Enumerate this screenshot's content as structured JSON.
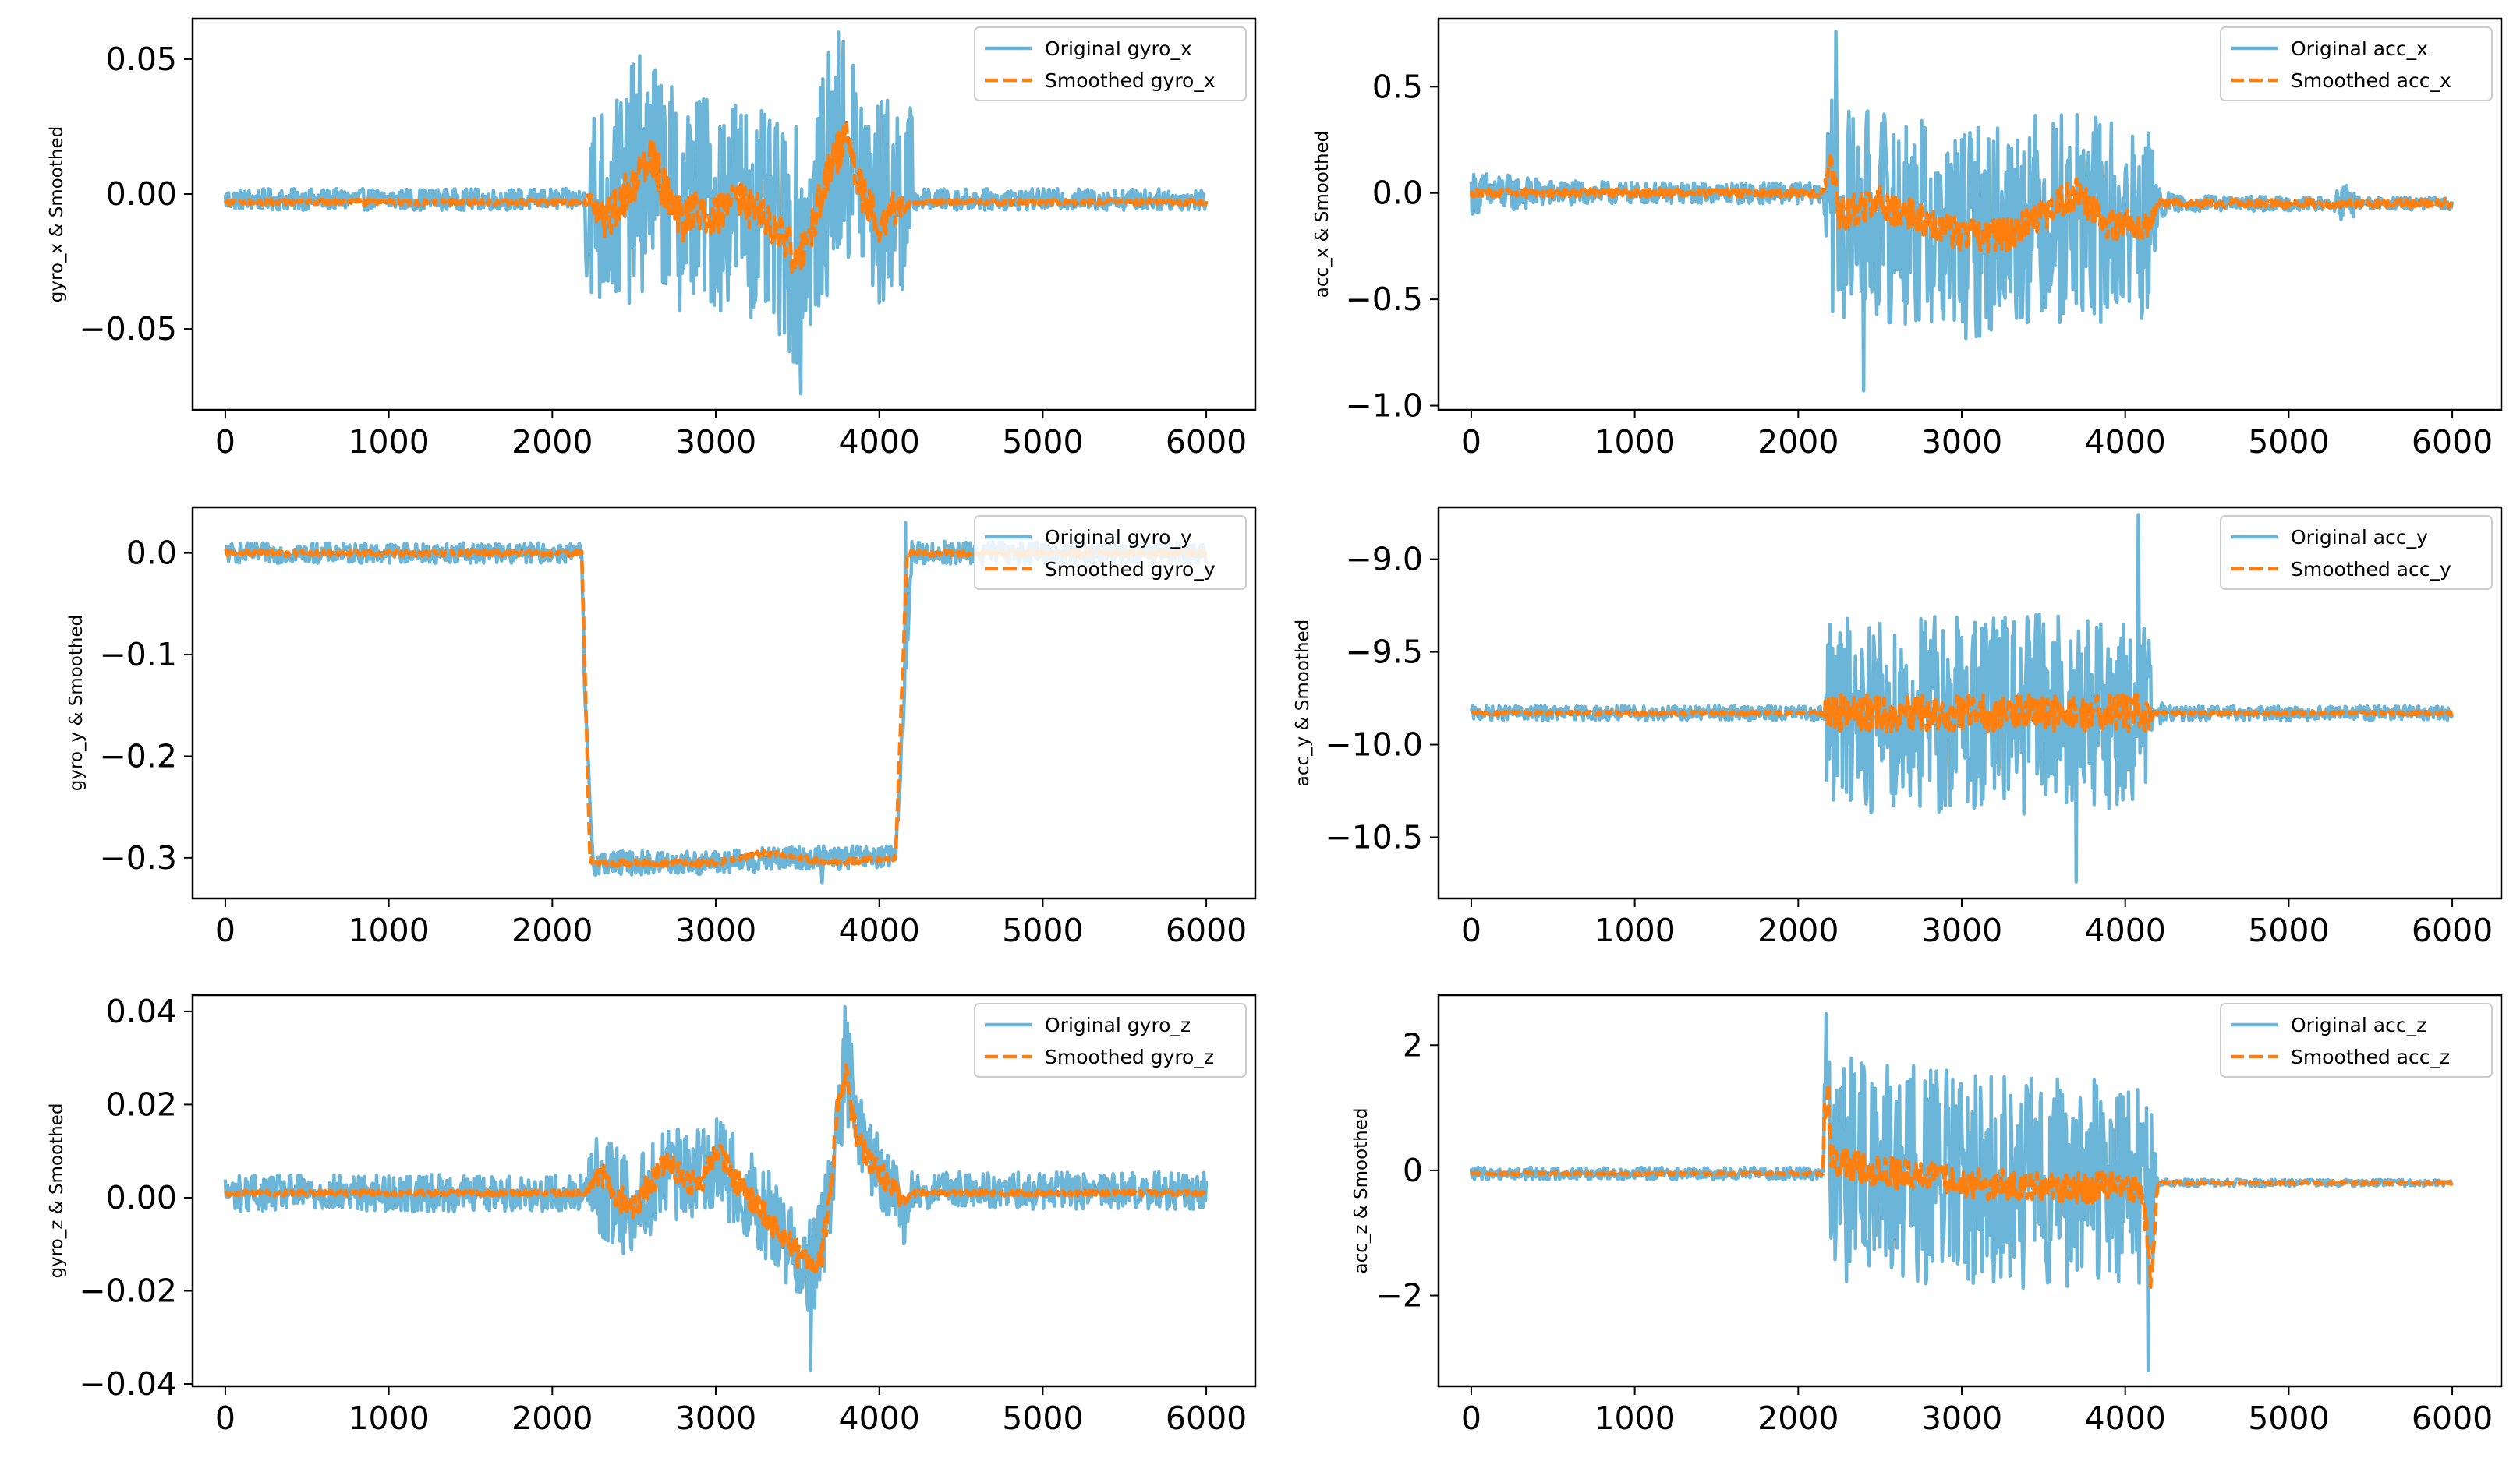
{
  "figure": {
    "background": "#ffffff"
  },
  "colors": {
    "original": "#6bb5d9",
    "smoothed": "#ff7f0e",
    "axes": "#000000",
    "legend_border": "#cccccc"
  },
  "chart_data": [
    {
      "id": "gyro_x",
      "type": "line",
      "title": "",
      "xlabel": "",
      "ylabel": "gyro_x & Smoothed",
      "xlim": [
        -200,
        6300
      ],
      "ylim": [
        -0.08,
        0.065
      ],
      "xticks": [
        0,
        1000,
        2000,
        3000,
        4000,
        5000,
        6000
      ],
      "xtick_labels": [
        "0",
        "1000",
        "2000",
        "3000",
        "4000",
        "5000",
        "6000"
      ],
      "yticks": [
        -0.05,
        0,
        0.05
      ],
      "ytick_labels": [
        "−0.05",
        "0.00",
        "0.05"
      ],
      "legend": [
        "Original gyro_x",
        "Smoothed gyro_x"
      ],
      "legend_loc": "upper right",
      "series": [
        {
          "name": "Original gyro_x",
          "style": "solid",
          "x": [
            0,
            2200,
            2200,
            2300,
            2400,
            2500,
            2600,
            2700,
            2800,
            2900,
            3000,
            3100,
            3200,
            3300,
            3400,
            3500,
            3600,
            3700,
            3800,
            3900,
            4000,
            4100,
            4200,
            4200,
            6000
          ],
          "base": [
            -0.002,
            -0.002,
            0.0,
            -0.005,
            -0.003,
            0.005,
            0.01,
            0.003,
            -0.005,
            0.0,
            -0.005,
            0.0,
            -0.005,
            -0.01,
            -0.015,
            -0.02,
            -0.01,
            0.01,
            0.015,
            0.005,
            -0.005,
            0.0,
            -0.002,
            -0.002,
            -0.002
          ],
          "amp": [
            0.004,
            0.004,
            0.035,
            0.04,
            0.04,
            0.045,
            0.045,
            0.04,
            0.04,
            0.04,
            0.04,
            0.04,
            0.04,
            0.04,
            0.04,
            0.045,
            0.04,
            0.045,
            0.045,
            0.04,
            0.04,
            0.04,
            0.035,
            0.004,
            0.004
          ],
          "spike_max": 0.06,
          "spike_min": -0.074,
          "spike_max_at": 3750,
          "spike_min_at": 3520
        },
        {
          "name": "Smoothed gyro_x",
          "style": "dashed",
          "x": [
            0,
            2200,
            2250,
            2300,
            2400,
            2500,
            2600,
            2700,
            2800,
            2900,
            3000,
            3100,
            3200,
            3300,
            3400,
            3500,
            3600,
            3700,
            3800,
            3900,
            4000,
            4100,
            4200,
            6000
          ],
          "y": [
            -0.003,
            -0.003,
            0.0,
            -0.01,
            -0.005,
            0.005,
            0.015,
            0.0,
            -0.01,
            -0.005,
            -0.008,
            0.0,
            -0.005,
            -0.01,
            -0.015,
            -0.025,
            -0.01,
            0.01,
            0.02,
            0.0,
            -0.01,
            -0.005,
            -0.003,
            -0.003
          ],
          "noise": [
            0.001,
            0.001,
            0.006,
            0.008,
            0.008,
            0.008,
            0.008,
            0.008,
            0.008,
            0.008,
            0.008,
            0.008,
            0.008,
            0.008,
            0.008,
            0.008,
            0.008,
            0.008,
            0.008,
            0.008,
            0.008,
            0.006,
            0.001,
            0.001
          ]
        }
      ]
    },
    {
      "id": "acc_x",
      "type": "line",
      "title": "",
      "xlabel": "",
      "ylabel": "acc_x & Smoothed",
      "xlim": [
        -200,
        6300
      ],
      "ylim": [
        -1.02,
        0.82
      ],
      "xticks": [
        0,
        1000,
        2000,
        3000,
        4000,
        5000,
        6000
      ],
      "xtick_labels": [
        "0",
        "1000",
        "2000",
        "3000",
        "4000",
        "5000",
        "6000"
      ],
      "yticks": [
        -1.0,
        -0.5,
        0.0,
        0.5
      ],
      "ytick_labels": [
        "−1.0",
        "−0.5",
        "0.0",
        "0.5"
      ],
      "legend": [
        "Original acc_x",
        "Smoothed acc_x"
      ],
      "legend_loc": "upper right",
      "series": [
        {
          "name": "Original acc_x",
          "style": "solid",
          "x": [
            0,
            100,
            500,
            1000,
            1500,
            2000,
            2150,
            2200,
            2250,
            2500,
            3000,
            3500,
            4000,
            4150,
            4200,
            4300,
            5250,
            5350,
            5450,
            6000
          ],
          "base": [
            0.0,
            0.0,
            0.0,
            0.0,
            0.0,
            0.0,
            0.0,
            -0.05,
            -0.1,
            -0.1,
            -0.2,
            -0.1,
            -0.15,
            -0.15,
            -0.05,
            -0.05,
            -0.05,
            -0.05,
            -0.05,
            -0.05
          ],
          "amp": [
            0.1,
            0.1,
            0.06,
            0.05,
            0.05,
            0.05,
            0.05,
            0.5,
            0.5,
            0.5,
            0.5,
            0.5,
            0.5,
            0.45,
            0.08,
            0.04,
            0.03,
            0.1,
            0.03,
            0.03
          ],
          "spike_max": 0.76,
          "spike_min": -0.93,
          "spike_max_at": 2230,
          "spike_min_at": 2400
        },
        {
          "name": "Smoothed acc_x",
          "style": "dashed",
          "x": [
            0,
            2150,
            2200,
            2250,
            2500,
            3000,
            3300,
            3500,
            3700,
            3900,
            4150,
            4200,
            6000
          ],
          "y": [
            0.0,
            0.0,
            0.15,
            -0.1,
            -0.05,
            -0.2,
            -0.2,
            -0.1,
            0.0,
            -0.15,
            -0.15,
            -0.05,
            -0.05
          ],
          "noise": [
            0.02,
            0.02,
            0.05,
            0.08,
            0.08,
            0.08,
            0.08,
            0.08,
            0.08,
            0.08,
            0.06,
            0.02,
            0.02
          ]
        }
      ]
    },
    {
      "id": "gyro_y",
      "type": "line",
      "title": "",
      "xlabel": "",
      "ylabel": "gyro_y & Smoothed",
      "xlim": [
        -200,
        6300
      ],
      "ylim": [
        -0.34,
        0.045
      ],
      "xticks": [
        0,
        1000,
        2000,
        3000,
        4000,
        5000,
        6000
      ],
      "xtick_labels": [
        "0",
        "1000",
        "2000",
        "3000",
        "4000",
        "5000",
        "6000"
      ],
      "yticks": [
        -0.3,
        -0.2,
        -0.1,
        0.0
      ],
      "ytick_labels": [
        "−0.3",
        "−0.2",
        "−0.1",
        "0.0"
      ],
      "legend": [
        "Original gyro_y",
        "Smoothed gyro_y"
      ],
      "legend_loc": "upper right",
      "series": [
        {
          "name": "Original gyro_y",
          "style": "solid",
          "x": [
            0,
            2180,
            2200,
            2250,
            3000,
            3500,
            4100,
            4150,
            4200,
            6000
          ],
          "base": [
            0.0,
            0.0,
            -0.15,
            -0.305,
            -0.305,
            -0.3,
            -0.3,
            -0.15,
            0.0,
            0.0
          ],
          "amp": [
            0.01,
            0.01,
            0.01,
            0.012,
            0.012,
            0.012,
            0.012,
            0.01,
            0.012,
            0.01
          ],
          "spike_max": 0.03,
          "spike_min": -0.325,
          "spike_max_at": 4160,
          "spike_min_at": 3650
        },
        {
          "name": "Smoothed gyro_y",
          "style": "dashed",
          "x": [
            0,
            2180,
            2230,
            2250,
            2500,
            3000,
            3300,
            3700,
            4100,
            4170,
            4200,
            6000
          ],
          "y": [
            0.0,
            0.0,
            -0.3,
            -0.305,
            -0.305,
            -0.305,
            -0.295,
            -0.305,
            -0.3,
            0.0,
            0.0,
            0.0
          ],
          "noise": [
            0.003,
            0.003,
            0.003,
            0.003,
            0.003,
            0.003,
            0.003,
            0.003,
            0.003,
            0.003,
            0.003,
            0.003
          ]
        }
      ]
    },
    {
      "id": "acc_y",
      "type": "line",
      "title": "",
      "xlabel": "",
      "ylabel": "acc_y & Smoothed",
      "xlim": [
        -200,
        6300
      ],
      "ylim": [
        -10.83,
        -8.72
      ],
      "xticks": [
        0,
        1000,
        2000,
        3000,
        4000,
        5000,
        6000
      ],
      "xtick_labels": [
        "0",
        "1000",
        "2000",
        "3000",
        "4000",
        "5000",
        "6000"
      ],
      "yticks": [
        -10.5,
        -10.0,
        -9.5,
        -9.0
      ],
      "ytick_labels": [
        "−10.5",
        "−10.0",
        "−9.5",
        "−9.0"
      ],
      "legend": [
        "Original acc_y",
        "Smoothed acc_y"
      ],
      "legend_loc": "upper right",
      "series": [
        {
          "name": "Original acc_y",
          "style": "solid",
          "x": [
            0,
            2150,
            2170,
            2500,
            3000,
            3500,
            4150,
            4170,
            4300,
            6000
          ],
          "base": [
            -9.83,
            -9.83,
            -9.83,
            -9.83,
            -9.83,
            -9.83,
            -9.83,
            -9.83,
            -9.83,
            -9.83
          ],
          "amp": [
            0.04,
            0.04,
            0.5,
            0.55,
            0.55,
            0.55,
            0.5,
            0.08,
            0.04,
            0.04
          ],
          "spike_max": -8.76,
          "spike_min": -10.74,
          "spike_max_at": 4080,
          "spike_min_at": 3700
        },
        {
          "name": "Smoothed acc_y",
          "style": "dashed",
          "x": [
            0,
            2150,
            2170,
            4150,
            4170,
            6000
          ],
          "y": [
            -9.83,
            -9.83,
            -9.83,
            -9.83,
            -9.83,
            -9.83
          ],
          "noise": [
            0.01,
            0.01,
            0.1,
            0.1,
            0.01,
            0.01
          ]
        }
      ]
    },
    {
      "id": "gyro_z",
      "type": "line",
      "title": "",
      "xlabel": "",
      "ylabel": "gyro_z & Smoothed",
      "xlim": [
        -200,
        6300
      ],
      "ylim": [
        -0.0405,
        0.0435
      ],
      "xticks": [
        0,
        1000,
        2000,
        3000,
        4000,
        5000,
        6000
      ],
      "xtick_labels": [
        "0",
        "1000",
        "2000",
        "3000",
        "4000",
        "5000",
        "6000"
      ],
      "yticks": [
        -0.04,
        -0.02,
        0.0,
        0.02,
        0.04
      ],
      "ytick_labels": [
        "−0.04",
        "−0.02",
        "0.00",
        "0.02",
        "0.04"
      ],
      "legend": [
        "Original gyro_z",
        "Smoothed gyro_z"
      ],
      "legend_loc": "upper right",
      "series": [
        {
          "name": "Original gyro_z",
          "style": "solid",
          "x": [
            0,
            2200,
            2250,
            2400,
            2500,
            2700,
            2800,
            3000,
            3100,
            3300,
            3500,
            3600,
            3700,
            3800,
            3900,
            4000,
            4100,
            4150,
            4200,
            6000
          ],
          "base": [
            0.001,
            0.001,
            0.003,
            0.0,
            -0.002,
            0.006,
            0.004,
            0.008,
            0.004,
            -0.003,
            -0.012,
            -0.015,
            0.0,
            0.028,
            0.012,
            0.005,
            0.0,
            -0.005,
            0.0015,
            0.0015
          ],
          "amp": [
            0.004,
            0.004,
            0.01,
            0.012,
            0.01,
            0.01,
            0.01,
            0.01,
            0.01,
            0.01,
            0.01,
            0.012,
            0.01,
            0.012,
            0.008,
            0.008,
            0.008,
            0.006,
            0.004,
            0.004
          ],
          "spike_max": 0.041,
          "spike_min": -0.037,
          "spike_max_at": 3790,
          "spike_min_at": 3580
        },
        {
          "name": "Smoothed gyro_z",
          "style": "dashed",
          "x": [
            0,
            2200,
            2300,
            2400,
            2500,
            2700,
            2800,
            2900,
            3000,
            3100,
            3200,
            3300,
            3400,
            3500,
            3600,
            3650,
            3700,
            3750,
            3800,
            3850,
            3900,
            4000,
            4100,
            4150,
            4200,
            6000
          ],
          "y": [
            0.001,
            0.001,
            0.005,
            0.0,
            -0.002,
            0.008,
            0.004,
            0.002,
            0.01,
            0.005,
            0.0,
            -0.004,
            -0.008,
            -0.012,
            -0.016,
            -0.012,
            0.0,
            0.022,
            0.026,
            0.015,
            0.01,
            0.005,
            0.002,
            -0.002,
            0.001,
            0.001
          ],
          "noise": [
            0.0006,
            0.0006,
            0.003,
            0.003,
            0.003,
            0.003,
            0.003,
            0.003,
            0.003,
            0.003,
            0.003,
            0.003,
            0.003,
            0.003,
            0.003,
            0.003,
            0.003,
            0.003,
            0.003,
            0.003,
            0.003,
            0.003,
            0.003,
            0.002,
            0.0006,
            0.0006
          ]
        }
      ]
    },
    {
      "id": "acc_z",
      "type": "line",
      "title": "",
      "xlabel": "",
      "ylabel": "acc_z & Smoothed",
      "xlim": [
        -200,
        6300
      ],
      "ylim": [
        -3.45,
        2.8
      ],
      "xticks": [
        0,
        1000,
        2000,
        3000,
        4000,
        5000,
        6000
      ],
      "xtick_labels": [
        "0",
        "1000",
        "2000",
        "3000",
        "4000",
        "5000",
        "6000"
      ],
      "yticks": [
        -2,
        0,
        2
      ],
      "ytick_labels": [
        "−2",
        "0",
        "2"
      ],
      "legend": [
        "Original acc_z",
        "Smoothed acc_z"
      ],
      "legend_loc": "upper right",
      "series": [
        {
          "name": "Original acc_z",
          "style": "solid",
          "x": [
            0,
            2150,
            2160,
            2200,
            2500,
            3000,
            3500,
            4100,
            4150,
            4200,
            6000
          ],
          "base": [
            -0.05,
            -0.05,
            0.8,
            0.0,
            0.0,
            -0.15,
            -0.2,
            -0.2,
            -0.5,
            -0.2,
            -0.2
          ],
          "amp": [
            0.1,
            0.1,
            1.5,
            1.8,
            1.8,
            1.7,
            1.7,
            1.6,
            1.8,
            0.06,
            0.05
          ],
          "spike_max": 2.5,
          "spike_min": -3.2,
          "spike_max_at": 2170,
          "spike_min_at": 4140
        },
        {
          "name": "Smoothed acc_z",
          "style": "dashed",
          "x": [
            0,
            2150,
            2160,
            2180,
            2200,
            2250,
            2500,
            3000,
            3500,
            4100,
            4130,
            4160,
            4180,
            4200,
            6000
          ],
          "y": [
            -0.05,
            -0.05,
            1.0,
            1.5,
            0.3,
            0.1,
            0.0,
            -0.2,
            -0.25,
            -0.3,
            -1.0,
            -1.8,
            -0.8,
            -0.2,
            -0.2
          ],
          "noise": [
            0.02,
            0.02,
            0.3,
            0.3,
            0.25,
            0.25,
            0.25,
            0.25,
            0.25,
            0.25,
            0.3,
            0.3,
            0.2,
            0.02,
            0.02
          ]
        }
      ]
    }
  ]
}
